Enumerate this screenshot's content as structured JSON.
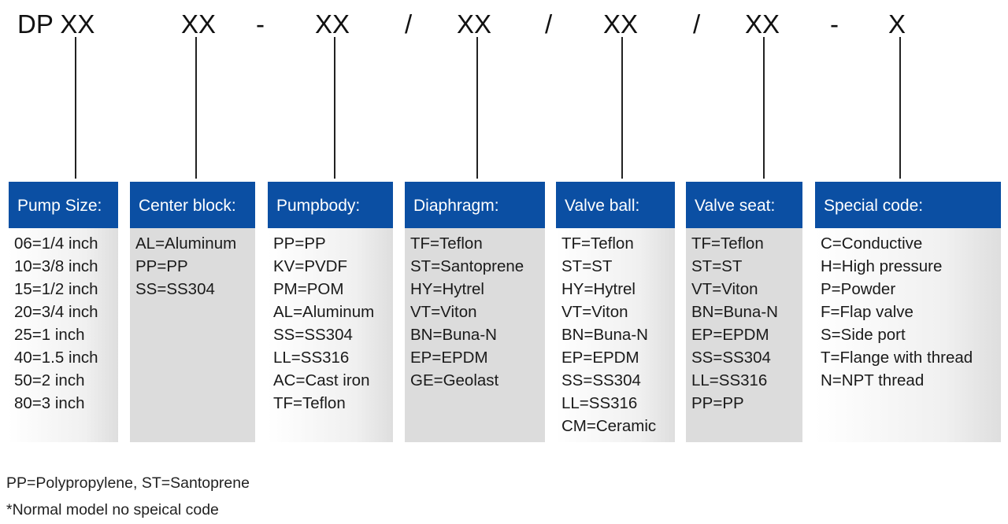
{
  "model_code": {
    "segments": [
      "DP XX",
      "XX",
      "-",
      "XX",
      "/",
      "XX",
      "/",
      "XX",
      "/",
      "XX",
      "-",
      "X"
    ]
  },
  "boxes": [
    {
      "title": "Pump Size:",
      "items": [
        "06=1/4 inch",
        "10=3/8 inch",
        "15=1/2 inch",
        "20=3/4 inch",
        "25=1 inch",
        "40=1.5 inch",
        "50=2 inch",
        "80=3 inch"
      ]
    },
    {
      "title": "Center block:",
      "items": [
        "AL=Aluminum",
        "PP=PP",
        "SS=SS304"
      ]
    },
    {
      "title": "Pumpbody:",
      "items": [
        "PP=PP",
        "KV=PVDF",
        "PM=POM",
        "AL=Aluminum",
        "SS=SS304",
        "LL=SS316",
        "AC=Cast iron",
        "TF=Teflon"
      ]
    },
    {
      "title": "Diaphragm:",
      "items": [
        "TF=Teflon",
        "ST=Santoprene",
        "HY=Hytrel",
        "VT=Viton",
        "BN=Buna-N",
        "EP=EPDM",
        "GE=Geolast"
      ]
    },
    {
      "title": "Valve ball:",
      "items": [
        "TF=Teflon",
        "ST=ST",
        "HY=Hytrel",
        "VT=Viton",
        "BN=Buna-N",
        "EP=EPDM",
        "SS=SS304",
        "LL=SS316",
        "CM=Ceramic"
      ]
    },
    {
      "title": "Valve seat:",
      "items": [
        "TF=Teflon",
        "ST=ST",
        "VT=Viton",
        "BN=Buna-N",
        "EP=EPDM",
        "SS=SS304",
        "LL=SS316",
        "PP=PP"
      ]
    },
    {
      "title": "Special code:",
      "items": [
        "C=Conductive",
        "H=High pressure",
        "P=Powder",
        "F=Flap valve",
        "S=Side port",
        "T=Flange with thread",
        "N=NPT thread"
      ]
    }
  ],
  "notes": [
    "PP=Polypropylene, ST=Santoprene",
    "*Normal model no speical code"
  ],
  "colors": {
    "header": "#0b4fa3"
  }
}
